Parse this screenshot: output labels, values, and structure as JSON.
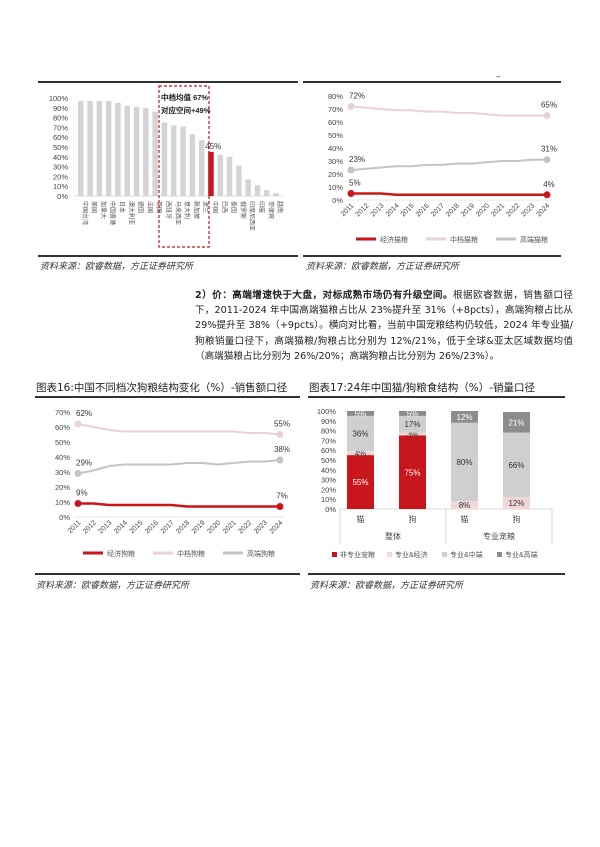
{
  "header": {
    "mark": "–"
  },
  "chart_data": [
    {
      "type": "bar",
      "id": "global-premium-share",
      "categories": [
        "中国台湾",
        "美国",
        "加拿大",
        "中国香港",
        "日本",
        "澳大利亚",
        "德国",
        "法国",
        "英国",
        "西班牙",
        "马来西亚",
        "意大利",
        "新加坡",
        "波兰",
        "中国",
        "巴西",
        "泰国",
        "俄罗斯",
        "印度尼西亚",
        "印度",
        "菲律宾",
        "越南"
      ],
      "values": [
        97,
        97,
        97,
        97,
        95,
        92,
        91,
        90,
        86,
        75,
        72,
        71,
        63,
        57,
        45,
        42,
        40,
        31,
        17,
        11,
        6,
        3
      ],
      "highlight": "中国",
      "highlight_label": "45%",
      "annotation": [
        "中档均值 67%",
        "对应空间+49%"
      ],
      "yticks": [
        "100%",
        "90%",
        "80%",
        "70%",
        "60%",
        "50%",
        "40%",
        "30%",
        "20%",
        "10%",
        "0%"
      ],
      "ylim": [
        0,
        100
      ],
      "colors": {
        "bar": "#d4d4d4",
        "highlight": "#c8161d",
        "box": "#c8161d"
      },
      "source": "资料来源：欧睿数据，方正证券研究所"
    },
    {
      "type": "line",
      "id": "cat-food-structure",
      "x": [
        "2011",
        "2012",
        "2013",
        "2014",
        "2015",
        "2016",
        "2017",
        "2018",
        "2019",
        "2020",
        "2021",
        "2022",
        "2023",
        "2024"
      ],
      "ylim": [
        0,
        80
      ],
      "yticks": [
        "80%",
        "70%",
        "60%",
        "50%",
        "40%",
        "30%",
        "20%",
        "10%",
        "0%"
      ],
      "series": [
        {
          "name": "经济猫粮",
          "color": "#c8161d",
          "values": [
            5,
            5,
            5,
            4,
            4,
            4,
            4,
            4,
            4,
            4,
            4,
            4,
            4,
            4
          ],
          "labels": [
            "5%",
            "4%"
          ]
        },
        {
          "name": "中档猫粮",
          "color": "#ead2d4",
          "values": [
            72,
            71,
            70,
            69,
            69,
            68,
            68,
            67,
            67,
            66,
            65,
            65,
            65,
            65
          ],
          "labels": [
            "72%",
            "65%"
          ]
        },
        {
          "name": "高端猫粮",
          "color": "#c4c4c4",
          "values": [
            23,
            24,
            25,
            26,
            26,
            27,
            27,
            28,
            28,
            29,
            30,
            30,
            31,
            31
          ],
          "labels": [
            "23%",
            "31%"
          ]
        }
      ],
      "source": "资料来源：欧睿数据，方正证券研究所"
    },
    {
      "type": "line",
      "id": "dog-food-structure",
      "title": "图表16:中国不同档次狗粮结构变化（%）-销售额口径",
      "x": [
        "2011",
        "2012",
        "2013",
        "2014",
        "2015",
        "2016",
        "2017",
        "2018",
        "2019",
        "2020",
        "2021",
        "2022",
        "2023",
        "2024"
      ],
      "ylim": [
        0,
        70
      ],
      "yticks": [
        "70%",
        "60%",
        "50%",
        "40%",
        "30%",
        "20%",
        "10%",
        "0%"
      ],
      "series": [
        {
          "name": "经济狗粮",
          "color": "#c8161d",
          "values": [
            9,
            9,
            8,
            8,
            8,
            8,
            8,
            7,
            7,
            7,
            7,
            7,
            7,
            7
          ],
          "labels": [
            "9%",
            "7%"
          ]
        },
        {
          "name": "中档狗粮",
          "color": "#ead2d4",
          "values": [
            62,
            60,
            58,
            57,
            57,
            57,
            57,
            57,
            57,
            57,
            57,
            56,
            56,
            55
          ],
          "labels": [
            "62%",
            "55%"
          ]
        },
        {
          "name": "高端狗粮",
          "color": "#c4c4c4",
          "values": [
            29,
            31,
            34,
            35,
            35,
            35,
            35,
            36,
            36,
            35,
            36,
            37,
            37,
            38
          ],
          "labels": [
            "29%",
            "38%"
          ]
        }
      ],
      "source": "资料来源：欧睿数据，方正证券研究所"
    },
    {
      "type": "stacked-bar",
      "id": "pet-food-2024",
      "title": "图表17:24年中国猫/狗粮食结构（%）-销量口径",
      "categories": [
        "猫",
        "狗",
        "猫",
        "狗"
      ],
      "groups": [
        "整体",
        "专业宠粮"
      ],
      "ylim": [
        0,
        100
      ],
      "yticks": [
        "100%",
        "90%",
        "80%",
        "70%",
        "60%",
        "50%",
        "40%",
        "30%",
        "20%",
        "10%",
        "0%"
      ],
      "series": [
        {
          "name": "非专业宠粮",
          "color": "#c8161d",
          "values": [
            55,
            75,
            0,
            0
          ],
          "labels": [
            "55%",
            "75%",
            "",
            ""
          ]
        },
        {
          "name": "专业&经济",
          "color": "#f2d6d8",
          "values": [
            4,
            3,
            8,
            12
          ],
          "labels": [
            "4%",
            "3%",
            "8%",
            "12%"
          ]
        },
        {
          "name": "专业&中端",
          "color": "#cfcfcf",
          "values": [
            36,
            17,
            80,
            66
          ],
          "labels": [
            "36%",
            "17%",
            "80%",
            "66%"
          ]
        },
        {
          "name": "专业&高端",
          "color": "#8c8c8c",
          "values": [
            5,
            5,
            12,
            21
          ],
          "labels": [
            "5%",
            "5%",
            "12%",
            "21%"
          ]
        }
      ],
      "source": "资料来源：欧睿数据，方正证券研究所"
    }
  ],
  "paragraph": {
    "lead": "2）价：高端增速快于大盘，对标成熟市场仍有升级空间。",
    "body": "根据欧睿数据，销售额口径下，2011-2024 年中国高端猫粮占比从 23%提升至 31%（+8pcts），高端狗粮占比从 29%提升至 38%（+9pcts）。横向对比看，当前中国宠粮结构仍较低，2024 年专业猫/狗粮销量口径下，高端猫粮/狗粮占比分别为 12%/21%，低于全球&亚太区域数据均值（高端猫粮占比分别为 26%/20%；高端狗粮占比分别为 26%/23%）。"
  }
}
